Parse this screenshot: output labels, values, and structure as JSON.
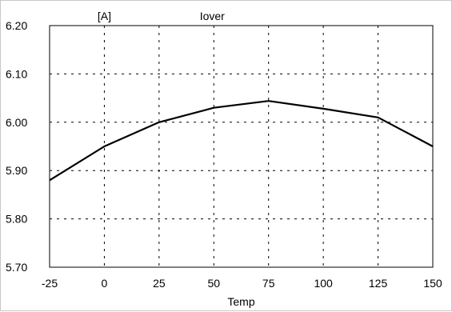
{
  "chart_data": {
    "type": "line",
    "title": "Iover",
    "unit_label": "[A]",
    "xlabel": "Temp",
    "ylabel": "",
    "xlim": [
      -25,
      150
    ],
    "ylim": [
      5.7,
      6.2
    ],
    "x_ticks": [
      "-25",
      "0",
      "25",
      "50",
      "75",
      "100",
      "125",
      "150"
    ],
    "y_ticks": [
      "5.70",
      "5.80",
      "5.90",
      "6.00",
      "6.10",
      "6.20"
    ],
    "grid": true,
    "grid_style": "dotted",
    "series": [
      {
        "x": [
          -25,
          0,
          25,
          50,
          75,
          100,
          125,
          150
        ],
        "y": [
          5.88,
          5.95,
          6.0,
          6.03,
          6.044,
          6.028,
          6.01,
          5.95
        ],
        "color": "#000000"
      }
    ]
  }
}
